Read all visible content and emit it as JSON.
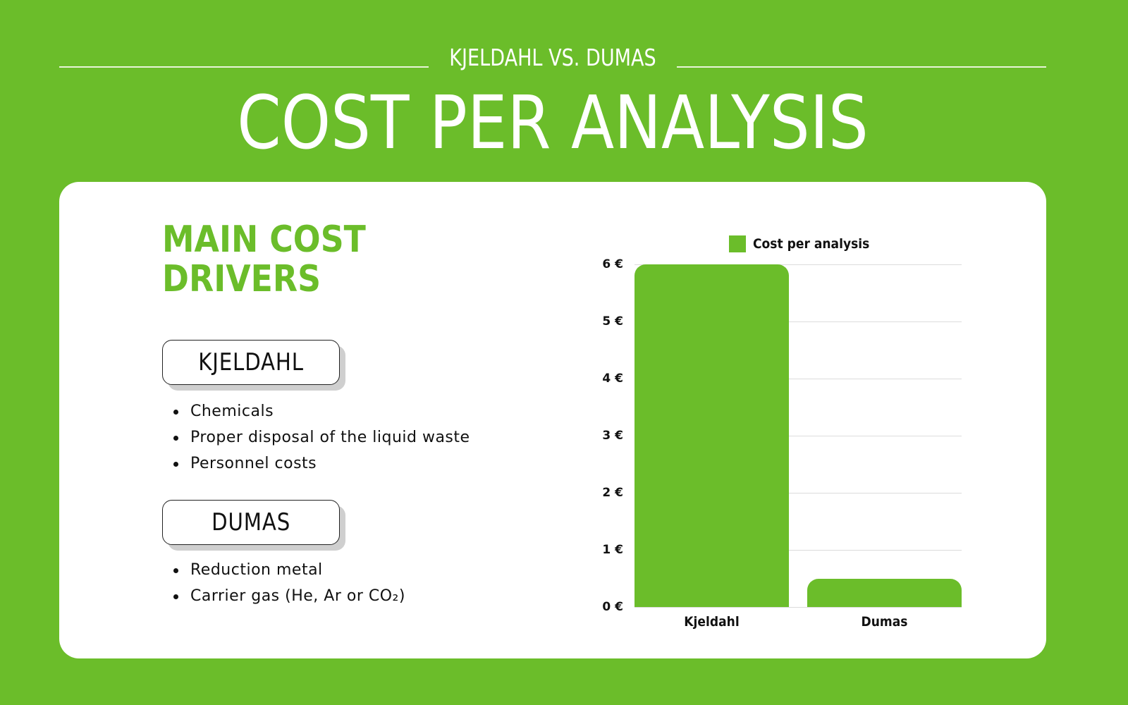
{
  "header": {
    "subtitle": "KJELDAHL VS. DUMAS",
    "title": "COST PER ANALYSIS"
  },
  "drivers": {
    "title_line1": "MAIN COST",
    "title_line2": "DRIVERS",
    "methods": [
      {
        "name": "KJELDAHL",
        "items": [
          "Chemicals",
          "Proper disposal of the liquid waste",
          "Personnel costs"
        ]
      },
      {
        "name": "DUMAS",
        "items": [
          "Reduction metal",
          "Carrier gas (He, Ar or CO₂)"
        ]
      }
    ]
  },
  "colors": {
    "accent": "#6bbd2a",
    "background": "#6bbd2a",
    "card": "#ffffff",
    "gridline": "#dcdcdc"
  },
  "chart_data": {
    "type": "bar",
    "title": "",
    "categories": [
      "Kjeldahl",
      "Dumas"
    ],
    "series": [
      {
        "name": "Cost per analysis",
        "values": [
          6,
          0.5
        ],
        "color": "#6bbd2a"
      }
    ],
    "values": [
      6,
      0.5
    ],
    "xlabel": "",
    "ylabel": "",
    "ylim": [
      0,
      6
    ],
    "yticks": [
      "0 €",
      "1 €",
      "2 €",
      "3 €",
      "4 €",
      "5 €",
      "6 €"
    ],
    "grid": true,
    "legend_position": "top"
  }
}
